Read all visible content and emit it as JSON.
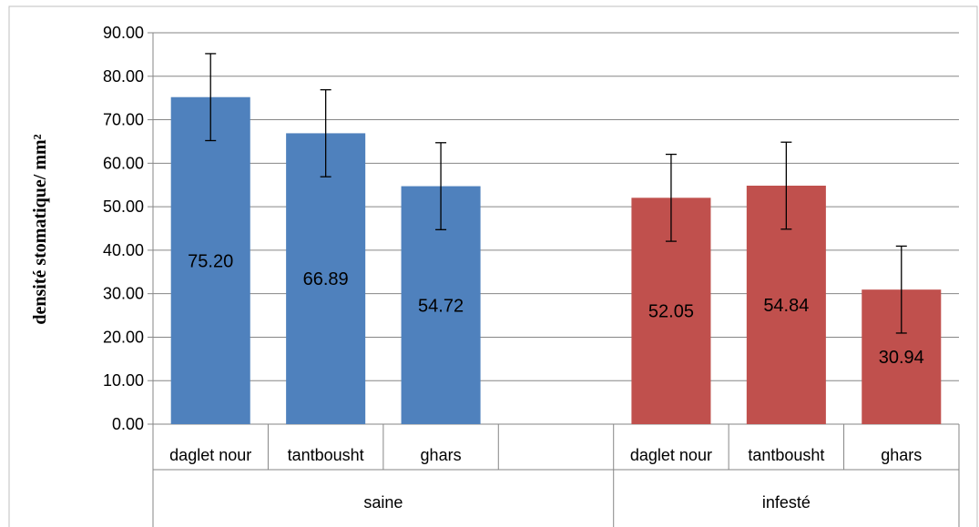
{
  "chart_data": {
    "type": "bar",
    "title": "",
    "xlabel": "",
    "ylabel": "densité stomatique/ mm²",
    "ylim": [
      0,
      90
    ],
    "y_ticks": [
      "0.00",
      "10.00",
      "20.00",
      "30.00",
      "40.00",
      "50.00",
      "60.00",
      "70.00",
      "80.00",
      "90.00"
    ],
    "grid": true,
    "legend": "none",
    "groups": [
      {
        "label": "saine",
        "color": "#4f81bd",
        "categories": [
          "daglet nour",
          "tantbousht",
          "ghars",
          ""
        ],
        "values": [
          75.2,
          66.89,
          54.72,
          null
        ],
        "value_labels": [
          "75.20",
          "66.89",
          "54.72",
          ""
        ],
        "error": [
          10,
          10,
          10,
          null
        ]
      },
      {
        "label": "infesté",
        "color": "#c0504d",
        "categories": [
          "daglet nour",
          "tantbousht",
          "ghars"
        ],
        "values": [
          52.05,
          54.84,
          30.94
        ],
        "value_labels": [
          "52.05",
          "54.84",
          "30.94"
        ],
        "error": [
          10,
          10,
          10
        ]
      }
    ]
  }
}
